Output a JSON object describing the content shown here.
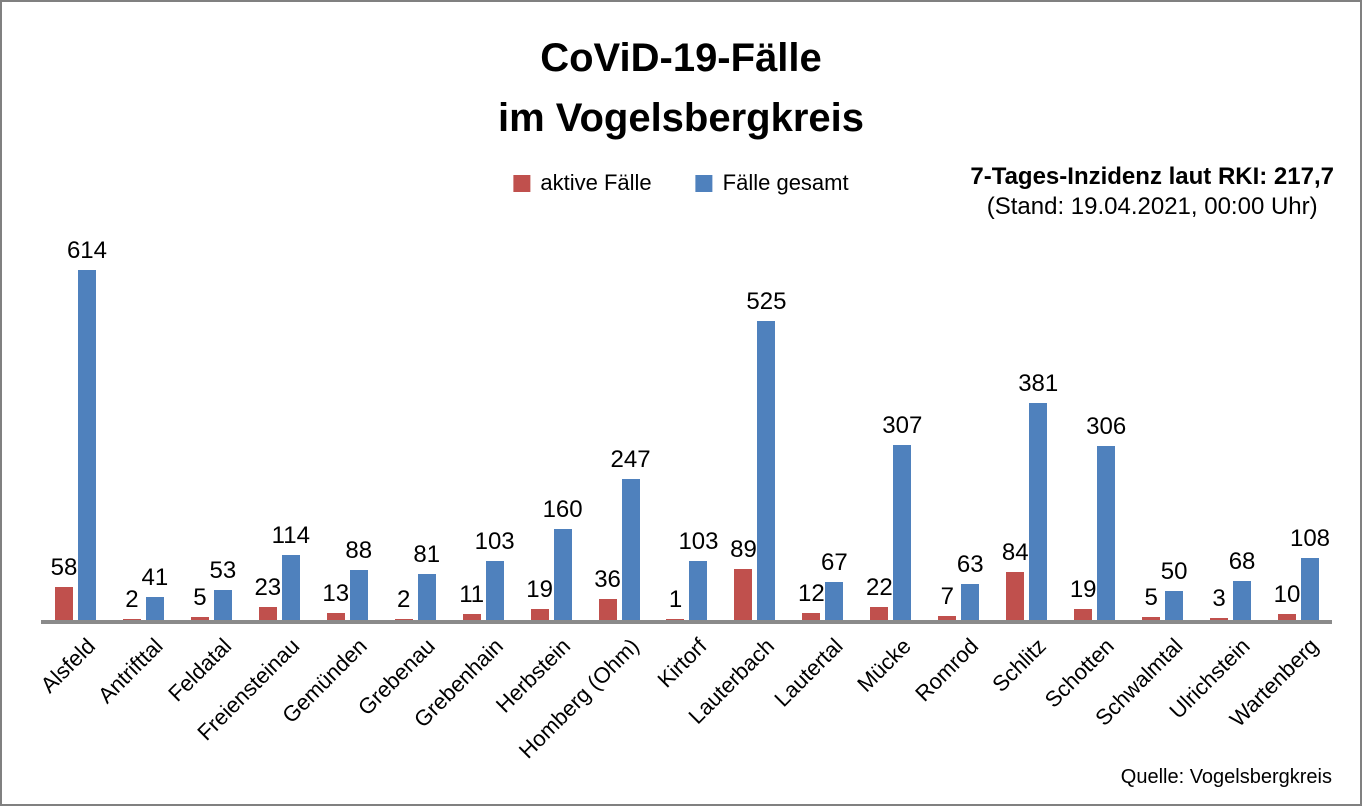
{
  "title": {
    "line1": "CoViD-19-Fälle",
    "line2": "im Vogelsbergkreis"
  },
  "legend": [
    {
      "label": "aktive Fälle",
      "color": "#C0504D"
    },
    {
      "label": "Fälle gesamt",
      "color": "#4F81BD"
    }
  ],
  "incidence": {
    "line1": "7-Tages-Inzidenz laut RKI: 217,7",
    "line2": "(Stand: 19.04.2021, 00:00 Uhr)"
  },
  "source": "Quelle: Vogelsbergkreis",
  "colors": {
    "active": "#C0504D",
    "total": "#4F81BD",
    "axis": "#8A8A8A",
    "frame": "#808080",
    "text": "#000000"
  },
  "chart_data": {
    "type": "bar",
    "title": "CoViD-19-Fälle im Vogelsbergkreis",
    "categories": [
      "Alsfeld",
      "Antrifttal",
      "Feldatal",
      "Freiensteinau",
      "Gemünden",
      "Grebenau",
      "Grebenhain",
      "Herbstein",
      "Homberg (Ohm)",
      "Kirtorf",
      "Lauterbach",
      "Lautertal",
      "Mücke",
      "Romrod",
      "Schlitz",
      "Schotten",
      "Schwalmtal",
      "Ulrichstein",
      "Wartenberg"
    ],
    "series": [
      {
        "name": "aktive Fälle",
        "color": "#C0504D",
        "values": [
          58,
          2,
          5,
          23,
          13,
          2,
          11,
          19,
          36,
          1,
          89,
          12,
          22,
          7,
          84,
          19,
          5,
          3,
          10
        ]
      },
      {
        "name": "Fälle gesamt",
        "color": "#4F81BD",
        "values": [
          614,
          41,
          53,
          114,
          88,
          81,
          103,
          160,
          247,
          103,
          525,
          67,
          307,
          63,
          381,
          306,
          50,
          68,
          108
        ]
      }
    ],
    "xlabel": "",
    "ylabel": "",
    "ylim": [
      0,
      650
    ],
    "grid": false,
    "legend_position": "top",
    "data_labels": true,
    "x_tick_rotation": 45,
    "annotation": "7-Tages-Inzidenz laut RKI: 217,7 (Stand: 19.04.2021, 00:00 Uhr)",
    "source": "Quelle: Vogelsbergkreis"
  }
}
